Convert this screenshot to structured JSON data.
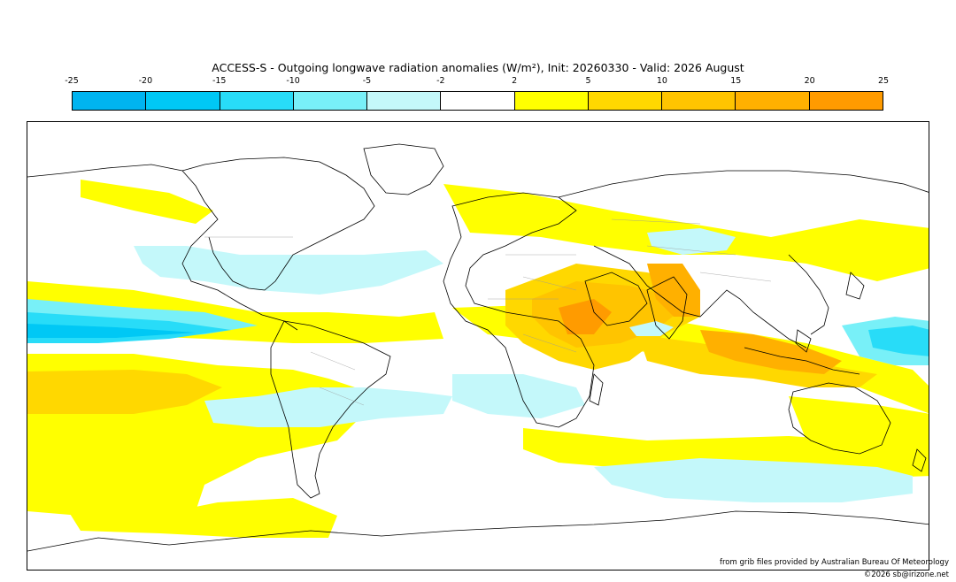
{
  "title": "ACCESS-S - Outgoing longwave radiation anomalies (W/m²), Init: 20260330 - Valid: 2026 August",
  "colorbar": {
    "ticks": [
      "-25",
      "-20",
      "-15",
      "-10",
      "-5",
      "-2",
      "2",
      "5",
      "10",
      "15",
      "20",
      "25"
    ],
    "colors": [
      "#00b4f0",
      "#00c8f5",
      "#28dcf8",
      "#78f0f8",
      "#c4f8fa",
      "#ffffff",
      "#ffff00",
      "#ffd800",
      "#ffc400",
      "#ffb000",
      "#ff9b00"
    ]
  },
  "credits": {
    "source": "from grib files provided by Australian Bureau Of Meteorology",
    "copyright": "©2026 sb@irizone.net"
  }
}
